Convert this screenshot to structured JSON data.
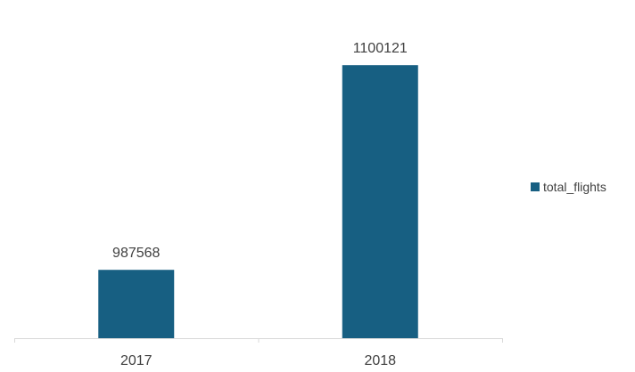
{
  "chart_data": {
    "type": "bar",
    "categories": [
      "2017",
      "2018"
    ],
    "series": [
      {
        "name": "total_flights",
        "values": [
          987568,
          1100121
        ],
        "color": "#175F82"
      }
    ],
    "data_labels": [
      "987568",
      "1100121"
    ],
    "title": "",
    "xlabel": "",
    "ylabel": "",
    "ylim": [
      950000,
      1110000
    ],
    "grid": false,
    "legend_position": "right",
    "axis_color": "#D9D9D9"
  }
}
